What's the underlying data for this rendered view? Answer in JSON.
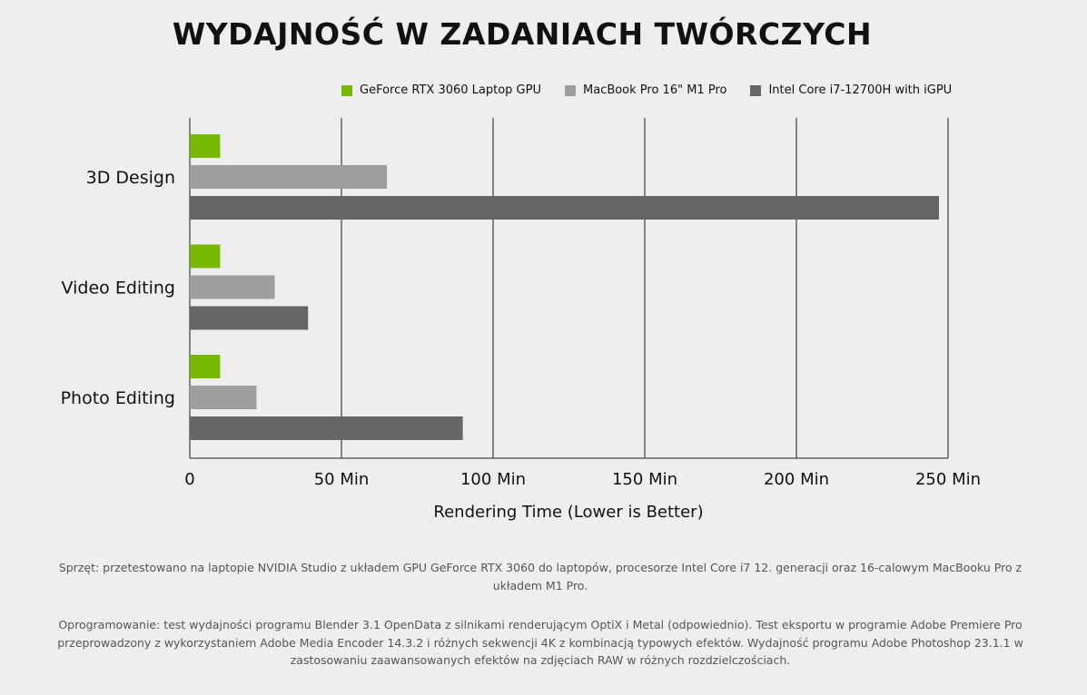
{
  "chart_data": {
    "type": "bar",
    "orientation": "horizontal",
    "title": "WYDAJNOŚĆ W ZADANIACH TWÓRCZYCH",
    "xlabel": "Rendering Time (Lower is Better)",
    "ylabel": "",
    "categories": [
      "3D Design",
      "Video Editing",
      "Photo Editing"
    ],
    "series": [
      {
        "name": "GeForce RTX 3060 Laptop GPU",
        "color": "#76b900",
        "values": [
          10,
          10,
          10
        ]
      },
      {
        "name": "MacBook Pro 16\" M1 Pro",
        "color": "#9e9e9e",
        "values": [
          65,
          28,
          22
        ]
      },
      {
        "name": "Intel Core i7-12700H with iGPU",
        "color": "#666666",
        "values": [
          247,
          39,
          90
        ]
      }
    ],
    "xlim": [
      0,
      250
    ],
    "xticks": [
      {
        "value": 0,
        "label": "0"
      },
      {
        "value": 50,
        "label": "50 Min"
      },
      {
        "value": 100,
        "label": "100 Min"
      },
      {
        "value": 150,
        "label": "150 Min"
      },
      {
        "value": 200,
        "label": "200 Min"
      },
      {
        "value": 250,
        "label": "250 Min"
      }
    ],
    "grid": true,
    "legend_position": "top-right"
  },
  "footnotes": {
    "hardware": "Sprzęt: przetestowano na laptopie NVIDIA Studio z układem GPU GeForce RTX 3060 do laptopów, procesorze Intel Core i7 12. generacji oraz 16-calowym MacBooku Pro z układem M1 Pro.",
    "software": "Oprogramowanie: test wydajności programu Blender 3.1 OpenData z silnikami renderującym OptiX i Metal (odpowiednio). Test eksportu w programie Adobe Premiere Pro przeprowadzony z wykorzystaniem Adobe Media Encoder 14.3.2 i różnych sekwencji 4K z kombinacją typowych efektów. Wydajność programu Adobe Photoshop 23.1.1 w zastosowaniu zaawansowanych efektów na zdjęciach RAW w różnych rozdzielczościach."
  }
}
